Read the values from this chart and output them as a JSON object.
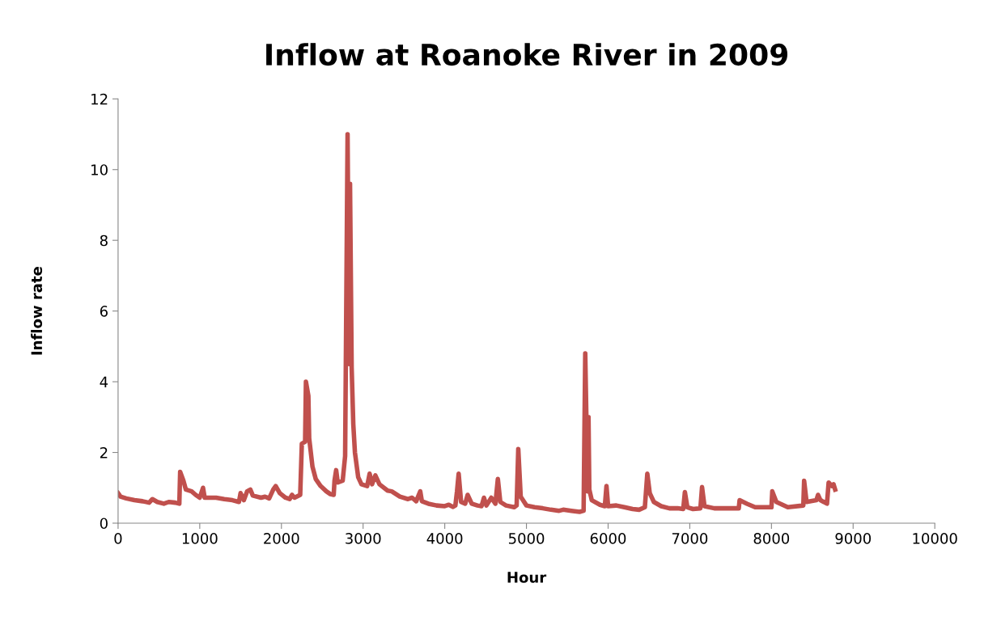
{
  "chart_data": {
    "type": "line",
    "title": "Inflow at Roanoke River in 2009",
    "xlabel": "Hour",
    "ylabel": "Inflow rate",
    "xlim": [
      0,
      10000
    ],
    "xticks": [
      0,
      1000,
      2000,
      3000,
      4000,
      5000,
      6000,
      7000,
      8000,
      9000,
      10000
    ],
    "ylim": [
      0,
      12
    ],
    "yticks": [
      0,
      2,
      4,
      6,
      8,
      10,
      12
    ],
    "grid": false,
    "marker": "none",
    "line_style": "solid",
    "series": [
      {
        "color": "#c0504d",
        "x": [
          0,
          30,
          100,
          200,
          300,
          380,
          420,
          480,
          560,
          620,
          700,
          750,
          760,
          800,
          830,
          900,
          950,
          1000,
          1040,
          1060,
          1200,
          1300,
          1400,
          1480,
          1500,
          1540,
          1580,
          1620,
          1650,
          1750,
          1800,
          1850,
          1900,
          1930,
          1980,
          2050,
          2100,
          2130,
          2160,
          2230,
          2250,
          2290,
          2300,
          2330,
          2340,
          2380,
          2420,
          2480,
          2550,
          2600,
          2640,
          2650,
          2670,
          2690,
          2750,
          2780,
          2810,
          2830,
          2840,
          2860,
          2880,
          2900,
          2940,
          2980,
          3050,
          3080,
          3110,
          3150,
          3200,
          3300,
          3350,
          3450,
          3550,
          3600,
          3650,
          3700,
          3720,
          3800,
          3900,
          4000,
          4050,
          4100,
          4130,
          4150,
          4170,
          4200,
          4250,
          4280,
          4330,
          4400,
          4450,
          4480,
          4510,
          4570,
          4620,
          4650,
          4680,
          4750,
          4850,
          4880,
          4900,
          4930,
          5000,
          5100,
          5200,
          5300,
          5400,
          5450,
          5550,
          5650,
          5700,
          5720,
          5750,
          5760,
          5770,
          5800,
          5900,
          5960,
          5980,
          6000,
          6100,
          6200,
          6300,
          6380,
          6450,
          6480,
          6510,
          6560,
          6650,
          6750,
          6850,
          6920,
          6940,
          6970,
          7040,
          7130,
          7150,
          7180,
          7300,
          7600,
          7610,
          7700,
          7800,
          8000,
          8010,
          8060,
          8200,
          8390,
          8400,
          8430,
          8550,
          8570,
          8600,
          8680,
          8700,
          8740,
          8760,
          8780
        ],
        "values": [
          0.85,
          0.75,
          0.7,
          0.65,
          0.62,
          0.58,
          0.68,
          0.6,
          0.55,
          0.6,
          0.58,
          0.55,
          1.45,
          1.2,
          0.95,
          0.9,
          0.8,
          0.72,
          1.0,
          0.72,
          0.72,
          0.68,
          0.65,
          0.6,
          0.85,
          0.65,
          0.9,
          0.95,
          0.78,
          0.72,
          0.75,
          0.7,
          0.95,
          1.05,
          0.85,
          0.72,
          0.68,
          0.8,
          0.72,
          0.8,
          2.25,
          2.3,
          4.0,
          3.6,
          2.4,
          1.6,
          1.25,
          1.05,
          0.9,
          0.82,
          0.8,
          1.2,
          1.5,
          1.15,
          1.2,
          1.9,
          11.0,
          4.5,
          9.6,
          4.4,
          2.8,
          2.0,
          1.3,
          1.1,
          1.05,
          1.4,
          1.1,
          1.35,
          1.1,
          0.92,
          0.9,
          0.75,
          0.68,
          0.72,
          0.62,
          0.9,
          0.62,
          0.55,
          0.5,
          0.48,
          0.52,
          0.46,
          0.5,
          0.9,
          1.4,
          0.6,
          0.55,
          0.8,
          0.55,
          0.5,
          0.48,
          0.72,
          0.5,
          0.72,
          0.55,
          1.25,
          0.6,
          0.5,
          0.45,
          0.5,
          2.1,
          0.75,
          0.5,
          0.45,
          0.42,
          0.38,
          0.35,
          0.38,
          0.35,
          0.32,
          0.35,
          4.8,
          0.9,
          3.0,
          0.95,
          0.65,
          0.52,
          0.48,
          1.05,
          0.48,
          0.5,
          0.45,
          0.4,
          0.38,
          0.45,
          1.4,
          0.85,
          0.6,
          0.48,
          0.42,
          0.42,
          0.4,
          0.88,
          0.45,
          0.4,
          0.42,
          1.02,
          0.48,
          0.42,
          0.42,
          0.65,
          0.55,
          0.45,
          0.45,
          0.9,
          0.6,
          0.45,
          0.5,
          1.2,
          0.6,
          0.65,
          0.8,
          0.65,
          0.55,
          1.15,
          1.05,
          1.1,
          0.95
        ]
      }
    ]
  }
}
